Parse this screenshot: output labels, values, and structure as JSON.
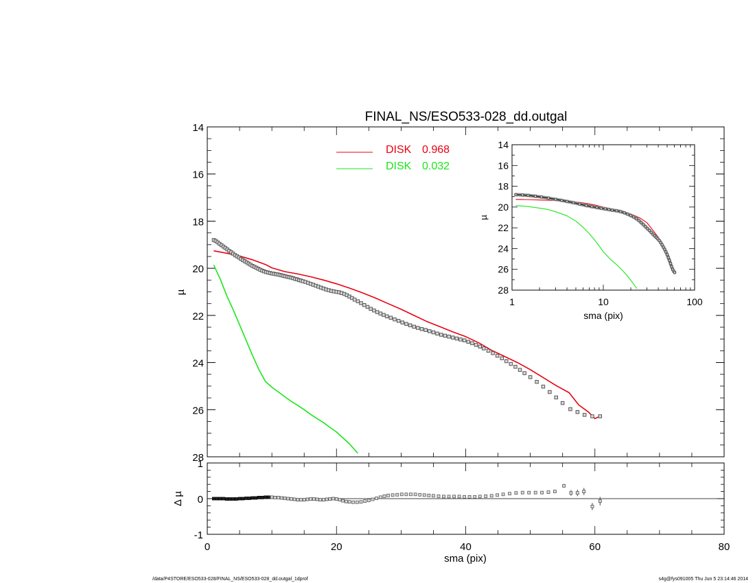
{
  "footer": {
    "path": "/data/P4STORE/ESO533-028/FINAL_NS/ESO533-028_dd.outgal_1dprof",
    "stamp": "s4g@fys091005  Thu Jun  5 23:14:46 2014"
  },
  "colors": {
    "disk1": "#e8000f",
    "disk2": "#19e619",
    "data": "#555555",
    "axis": "#000000"
  },
  "chart_data": [
    {
      "id": "main",
      "type": "scatter",
      "title": "FINAL_NS/ESO533-028_dd.outgal",
      "xlabel": "",
      "ylabel": "µ",
      "xlim": [
        0,
        80
      ],
      "ylim": [
        28,
        14
      ],
      "yticks": [
        14,
        16,
        18,
        20,
        22,
        24,
        26,
        28
      ],
      "xtick_step": 20,
      "legend": {
        "placement": "top-center",
        "entries": [
          {
            "label": "DISK",
            "value": "0.968",
            "color": "#e8000f"
          },
          {
            "label": "DISK",
            "value": "0.032",
            "color": "#19e619"
          }
        ]
      },
      "series": [
        {
          "kind": "points",
          "x": [
            1.0,
            1.3,
            1.6,
            1.9,
            2.2,
            2.5,
            2.8,
            3.1,
            3.4,
            3.7,
            4.0,
            4.3,
            4.6,
            4.9,
            5.2,
            5.5,
            5.8,
            6.1,
            6.4,
            6.7,
            7.0,
            7.3,
            7.6,
            7.9,
            8.2,
            8.5,
            8.8,
            9.1,
            9.4,
            9.7,
            10.0,
            10.3,
            10.6,
            10.9,
            11.2,
            11.5,
            11.8,
            12.1,
            12.4,
            12.7,
            13.0,
            13.3,
            13.6,
            13.9,
            14.2,
            14.5,
            14.8,
            15.2,
            15.6,
            16.0,
            16.4,
            16.8,
            17.2,
            17.6,
            18.0,
            18.4,
            18.8,
            19.2,
            19.6,
            20.0,
            20.4,
            20.8,
            21.2,
            21.6,
            22.0,
            22.4,
            22.8,
            23.3,
            23.8,
            24.3,
            24.8,
            25.3,
            25.8,
            26.3,
            26.8,
            27.3,
            27.8,
            28.4,
            29.0,
            29.6,
            30.2,
            30.8,
            31.4,
            32.0,
            32.6,
            33.2,
            33.8,
            34.4,
            35.0,
            35.6,
            36.2,
            36.8,
            37.4,
            38.0,
            38.6,
            39.2,
            39.8,
            40.4,
            41.0,
            41.6,
            42.2,
            42.8,
            43.5,
            44.2,
            44.9,
            45.6,
            46.3,
            47.0,
            47.7,
            48.4,
            49.1,
            50.0,
            51.0,
            52.0,
            53.0,
            54.0,
            55.0,
            56.2,
            57.3,
            58.4,
            59.6,
            60.8
          ],
          "y": [
            18.8,
            18.84,
            18.9,
            18.96,
            19.02,
            19.08,
            19.14,
            19.2,
            19.26,
            19.32,
            19.38,
            19.44,
            19.49,
            19.54,
            19.6,
            19.65,
            19.7,
            19.75,
            19.8,
            19.85,
            19.9,
            19.94,
            19.98,
            20.02,
            20.06,
            20.1,
            20.13,
            20.16,
            20.18,
            20.2,
            20.22,
            20.23,
            20.25,
            20.26,
            20.28,
            20.3,
            20.32,
            20.34,
            20.36,
            20.38,
            20.4,
            20.42,
            20.45,
            20.47,
            20.5,
            20.52,
            20.55,
            20.58,
            20.62,
            20.66,
            20.7,
            20.74,
            20.78,
            20.82,
            20.86,
            20.9,
            20.93,
            20.96,
            20.98,
            21.0,
            21.02,
            21.05,
            21.09,
            21.14,
            21.2,
            21.26,
            21.33,
            21.4,
            21.48,
            21.56,
            21.64,
            21.72,
            21.79,
            21.86,
            21.92,
            21.98,
            22.04,
            22.1,
            22.17,
            22.23,
            22.3,
            22.36,
            22.42,
            22.48,
            22.53,
            22.58,
            22.62,
            22.67,
            22.72,
            22.77,
            22.82,
            22.86,
            22.9,
            22.94,
            22.98,
            23.02,
            23.06,
            23.12,
            23.18,
            23.25,
            23.32,
            23.4,
            23.5,
            23.6,
            23.71,
            23.82,
            23.94,
            24.06,
            24.18,
            24.31,
            24.45,
            24.62,
            24.82,
            25.02,
            25.25,
            25.48,
            25.72,
            25.98,
            26.1,
            26.22,
            26.28,
            26.28
          ]
        },
        {
          "name": "DISK 0.968",
          "kind": "line",
          "color": "#e8000f",
          "x": [
            1,
            3,
            5,
            7,
            9,
            10,
            12,
            14,
            16,
            18,
            20,
            22,
            24,
            26,
            28,
            30,
            32,
            34,
            36,
            38,
            40,
            42,
            44,
            46,
            48,
            50,
            52,
            54,
            56,
            57.5,
            59,
            60,
            61
          ],
          "y": [
            19.26,
            19.36,
            19.48,
            19.64,
            19.84,
            19.98,
            20.14,
            20.24,
            20.36,
            20.5,
            20.66,
            20.84,
            21.04,
            21.26,
            21.5,
            21.74,
            22.0,
            22.26,
            22.48,
            22.7,
            22.9,
            23.16,
            23.48,
            23.74,
            24.0,
            24.3,
            24.64,
            24.98,
            25.28,
            25.8,
            26.1,
            26.38,
            26.25
          ]
        },
        {
          "name": "DISK 0.032",
          "kind": "line",
          "color": "#19e619",
          "x": [
            1,
            2,
            3,
            4,
            5,
            6,
            7,
            8,
            9,
            10,
            11,
            12,
            13,
            14,
            15,
            16,
            17,
            18,
            19,
            20,
            21,
            22,
            23.3
          ],
          "y": [
            19.86,
            20.45,
            21.15,
            21.75,
            22.4,
            23.05,
            23.7,
            24.3,
            24.8,
            25.05,
            25.25,
            25.45,
            25.65,
            25.82,
            26.0,
            26.2,
            26.38,
            26.55,
            26.75,
            26.95,
            27.2,
            27.45,
            27.85
          ]
        }
      ]
    },
    {
      "id": "inset",
      "type": "scatter",
      "xlabel": "sma (pix)",
      "ylabel": "µ",
      "xscale": "log",
      "xlim": [
        1,
        100
      ],
      "ylim": [
        28,
        14
      ],
      "yticks": [
        14,
        16,
        18,
        20,
        22,
        24,
        26,
        28
      ],
      "xticks": [
        1,
        10,
        100
      ],
      "series": [
        {
          "kind": "points",
          "x": [
            1.1,
            1.3,
            1.5,
            1.8,
            2.1,
            2.5,
            3.0,
            3.5,
            4.0,
            4.7,
            5.5,
            6.5,
            7.5,
            8.5,
            9.5,
            10.5,
            11.5,
            12.5,
            14.0,
            15.5,
            17.0,
            18.5,
            20.0,
            21.5,
            23.0,
            24.5,
            26.0,
            27.5,
            29.0,
            30.5,
            32.0,
            33.5,
            35.0,
            36.5,
            38.0,
            39.5,
            41.0,
            42.5,
            44.0,
            45.5,
            47.0,
            48.5,
            50.0,
            51.5,
            53.0,
            54.5,
            56.0,
            57.5,
            59.0,
            60.5
          ],
          "y": [
            18.8,
            18.84,
            18.88,
            18.96,
            19.04,
            19.14,
            19.26,
            19.36,
            19.46,
            19.58,
            19.72,
            19.86,
            19.96,
            20.05,
            20.12,
            20.18,
            20.24,
            20.3,
            20.36,
            20.44,
            20.56,
            20.68,
            20.82,
            20.96,
            21.12,
            21.3,
            21.5,
            21.7,
            21.9,
            22.08,
            22.26,
            22.44,
            22.62,
            22.78,
            22.92,
            23.06,
            23.22,
            23.42,
            23.64,
            23.86,
            24.08,
            24.32,
            24.58,
            24.86,
            25.14,
            25.44,
            25.74,
            26.0,
            26.18,
            26.3
          ]
        },
        {
          "name": "DISK 0.968",
          "kind": "line",
          "color": "#e8000f",
          "x": [
            1.1,
            1.5,
            2,
            3,
            4,
            5,
            6,
            7,
            8,
            10,
            12,
            15,
            20,
            25,
            30,
            40,
            50,
            60
          ],
          "y": [
            19.26,
            19.28,
            19.32,
            19.38,
            19.44,
            19.5,
            19.6,
            19.7,
            19.8,
            20.0,
            20.14,
            20.3,
            20.66,
            21.04,
            21.5,
            22.9,
            24.3,
            26.2
          ]
        },
        {
          "name": "DISK 0.032",
          "kind": "line",
          "color": "#19e619",
          "x": [
            1.1,
            1.5,
            2,
            2.5,
            3,
            4,
            5,
            6,
            7,
            8,
            9,
            10,
            12,
            14,
            16,
            18,
            20,
            22,
            23.3
          ],
          "y": [
            19.86,
            19.95,
            20.1,
            20.25,
            20.45,
            20.85,
            21.35,
            21.95,
            22.55,
            23.15,
            23.75,
            24.3,
            25.05,
            25.55,
            26.05,
            26.55,
            27.05,
            27.55,
            27.85
          ]
        }
      ]
    },
    {
      "id": "residual",
      "type": "scatter",
      "xlabel": "sma (pix)",
      "ylabel": "Δ µ",
      "xlim": [
        0,
        80
      ],
      "ylim": [
        -1,
        1
      ],
      "yticks": [
        -1,
        0,
        1
      ],
      "xticks": [
        0,
        20,
        40,
        60,
        80
      ],
      "series": [
        {
          "kind": "points",
          "x": [
            1,
            1.5,
            2,
            2.5,
            3,
            3.5,
            4,
            4.5,
            5,
            5.5,
            6,
            6.5,
            7,
            7.5,
            8,
            8.5,
            9,
            9.5,
            10,
            10.5,
            11,
            11.5,
            12,
            12.5,
            13,
            13.5,
            14,
            14.5,
            15,
            15.5,
            16,
            16.5,
            17,
            17.5,
            18,
            18.5,
            19,
            19.5,
            20,
            20.5,
            21,
            21.5,
            22,
            22.6,
            23.2,
            23.8,
            24.4,
            25,
            25.6,
            26.2,
            26.8,
            27.4,
            28,
            28.7,
            29.4,
            30.1,
            30.8,
            31.5,
            32.2,
            32.9,
            33.6,
            34.3,
            35,
            35.8,
            36.6,
            37.4,
            38.2,
            39,
            39.8,
            40.6,
            41.4,
            42.2,
            43.1,
            44,
            44.9,
            45.8,
            46.8,
            47.8,
            48.8,
            49.8,
            50.8,
            51.8,
            52.8,
            53.8
          ],
          "y": [
            0.0,
            0.0,
            0.0,
            0.0,
            -0.01,
            -0.01,
            -0.01,
            -0.01,
            0.0,
            0.0,
            0.01,
            0.01,
            0.02,
            0.02,
            0.03,
            0.03,
            0.04,
            0.04,
            0.04,
            0.03,
            0.03,
            0.02,
            0.01,
            0.0,
            -0.01,
            -0.02,
            -0.03,
            -0.03,
            -0.03,
            -0.02,
            -0.01,
            -0.01,
            -0.02,
            -0.03,
            -0.03,
            -0.02,
            -0.01,
            0.0,
            -0.01,
            -0.03,
            -0.06,
            -0.08,
            -0.09,
            -0.1,
            -0.1,
            -0.09,
            -0.07,
            -0.05,
            -0.02,
            0.01,
            0.04,
            0.07,
            0.09,
            0.1,
            0.11,
            0.12,
            0.12,
            0.12,
            0.12,
            0.11,
            0.1,
            0.09,
            0.08,
            0.07,
            0.06,
            0.06,
            0.06,
            0.06,
            0.05,
            0.05,
            0.05,
            0.06,
            0.07,
            0.08,
            0.1,
            0.12,
            0.14,
            0.16,
            0.17,
            0.17,
            0.17,
            0.17,
            0.18,
            0.2
          ]
        },
        {
          "kind": "errorbars",
          "x": [
            55.2,
            56.3,
            57.3,
            58.3,
            59.6,
            60.8
          ],
          "y": [
            0.36,
            0.16,
            0.16,
            0.2,
            -0.22,
            -0.07
          ],
          "err": [
            0.05,
            0.08,
            0.09,
            0.1,
            0.1,
            0.12
          ]
        }
      ]
    }
  ]
}
